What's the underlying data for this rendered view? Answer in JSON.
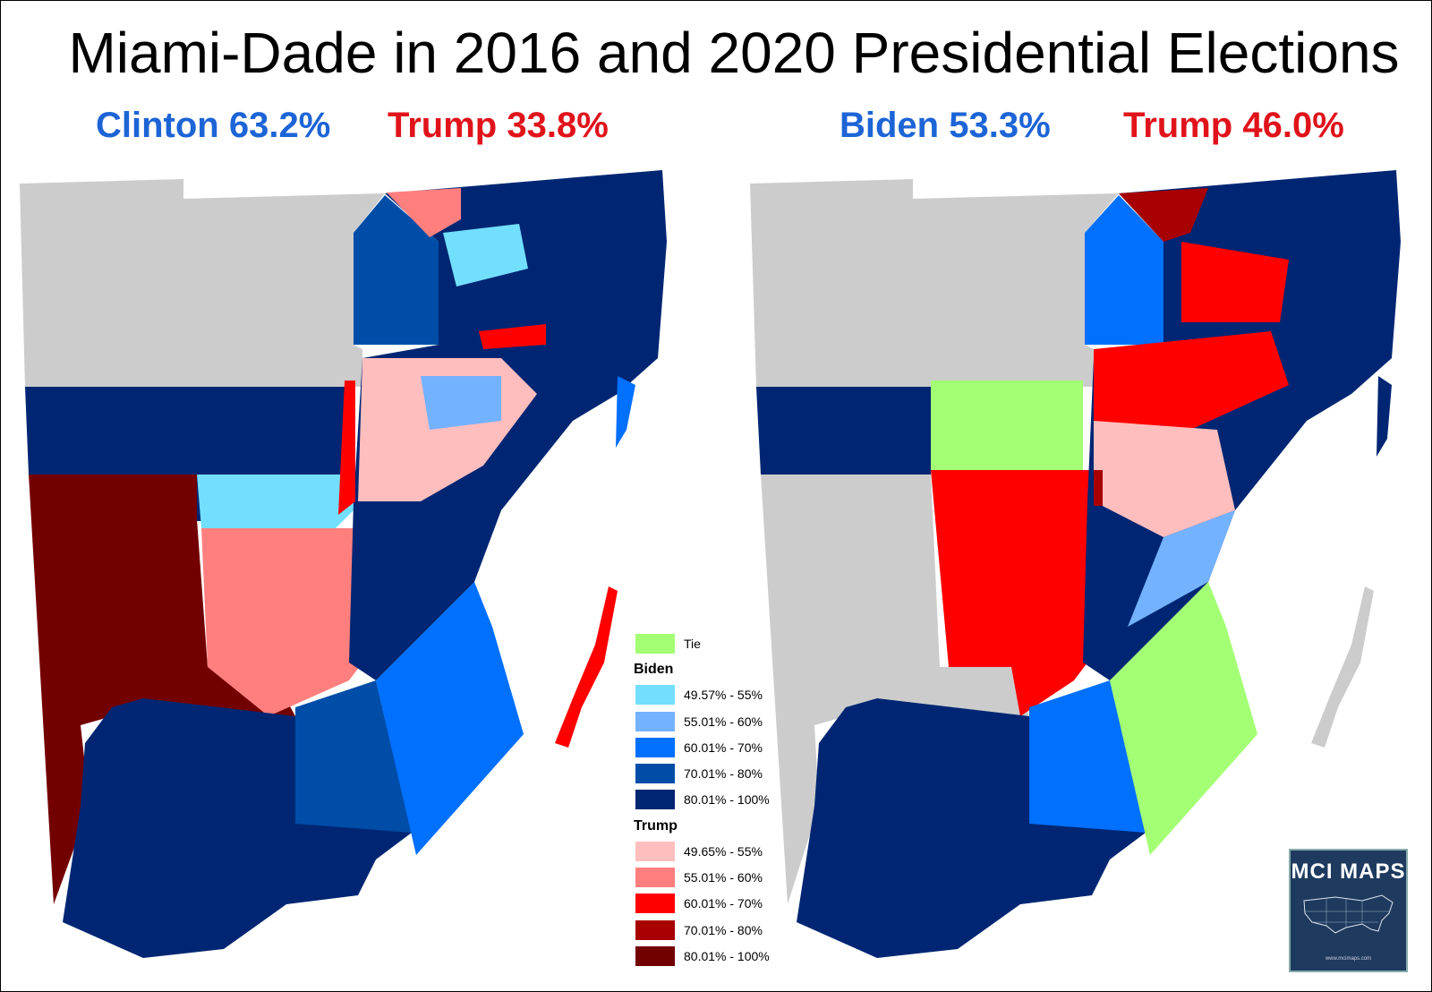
{
  "title": "Miami-Dade in 2016 and 2020 Presidential Elections",
  "results": {
    "y2016_dem": "Clinton 63.2%",
    "y2016_rep": "Trump 33.8%",
    "y2020_dem": "Biden 53.3%",
    "y2020_rep": "Trump 46.0%"
  },
  "colors": {
    "none": "#cccccc",
    "tie": "#a3ff73",
    "dem": [
      "#73dfff",
      "#73b2ff",
      "#0070ff",
      "#004da8",
      "#002673"
    ],
    "rep": [
      "#ffbebe",
      "#ff7f7f",
      "#ff0000",
      "#a80000",
      "#730000"
    ]
  },
  "legend": {
    "tie": "Tie",
    "dem_heading": "Biden",
    "dem_ranges": [
      "49.57% - 55%",
      "55.01% - 60%",
      "60.01% - 70%",
      "70.01% - 80%",
      "80.01% - 100%"
    ],
    "rep_heading": "Trump",
    "rep_ranges": [
      "49.65% - 55%",
      "55.01% - 60%",
      "60.01% - 70%",
      "70.01% - 80%",
      "80.01% - 100%"
    ]
  },
  "badge": {
    "name": "MCI MAPS",
    "url": "www.mcimaps.com"
  },
  "maps": {
    "y2016": {
      "northwest": "none",
      "west_central": "dem5",
      "southwest": "rep5",
      "central_west": "dem1",
      "south_central": "rep2",
      "far_south": "dem5",
      "southeast": "dem3",
      "south_mid": "dem4",
      "northeast": "dem5",
      "north_gate": "dem4",
      "key_strip": "rep3"
    },
    "y2020": {
      "northwest": "none",
      "west_central": "dem5",
      "southwest": "none",
      "central_west": "tie",
      "south_central": "rep3",
      "far_south": "dem5",
      "southeast": "tie",
      "south_mid": "dem3",
      "northeast": "dem5",
      "north_gate": "dem3",
      "key_strip": "none"
    }
  }
}
